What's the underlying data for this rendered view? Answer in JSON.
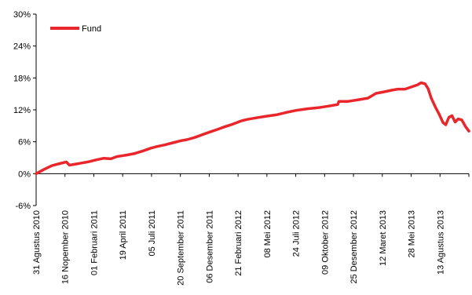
{
  "chart_data": {
    "type": "line",
    "title": "",
    "xlabel": "",
    "ylabel": "",
    "ylim": [
      -6,
      30
    ],
    "y_ticks": [
      "30%",
      "24%",
      "18%",
      "12%",
      "6%",
      "0%",
      "-6%"
    ],
    "y_tick_values": [
      30,
      24,
      18,
      12,
      6,
      0,
      -6
    ],
    "x_ticks": [
      "31 Agustus 2010",
      "16 Nopember 2010",
      "01 Februari 2011",
      "19 April 2011",
      "05 Juli 2011",
      "20 September 2011",
      "06 Desember 2011",
      "21 Februari 2012",
      "08 Mei 2012",
      "24 Juli 2012",
      "09 Oktober 2012",
      "25 Desember 2012",
      "12 Maret 2013",
      "28 Mei 2013",
      "13 Agustus 2013"
    ],
    "x_range": [
      "2010-08-31",
      "2013-09-09"
    ],
    "grid": false,
    "legend_position": "top-left",
    "colors": {
      "series": "#e8262b",
      "axis": "#000000"
    },
    "series": [
      {
        "name": "Fund",
        "x": [
          "2010-08-31",
          "2010-09-20",
          "2010-10-10",
          "2010-10-30",
          "2010-11-16",
          "2010-11-24",
          "2010-12-10",
          "2010-12-25",
          "2011-01-10",
          "2011-02-01",
          "2011-02-20",
          "2011-03-10",
          "2011-03-25",
          "2011-04-10",
          "2011-04-19",
          "2011-05-10",
          "2011-06-01",
          "2011-06-20",
          "2011-07-05",
          "2011-07-25",
          "2011-08-15",
          "2011-09-05",
          "2011-09-20",
          "2011-10-10",
          "2011-11-01",
          "2011-11-20",
          "2011-12-06",
          "2011-12-25",
          "2012-01-15",
          "2012-02-05",
          "2012-02-21",
          "2012-03-15",
          "2012-04-10",
          "2012-05-08",
          "2012-05-30",
          "2012-06-25",
          "2012-07-24",
          "2012-08-20",
          "2012-09-15",
          "2012-10-09",
          "2012-10-12",
          "2012-11-05",
          "2012-12-01",
          "2012-12-25",
          "2013-01-15",
          "2013-02-05",
          "2013-02-25",
          "2013-03-12",
          "2013-03-30",
          "2013-04-15",
          "2013-05-01",
          "2013-05-10",
          "2013-05-20",
          "2013-05-28",
          "2013-06-05",
          "2013-06-15",
          "2013-06-25",
          "2013-07-05",
          "2013-07-12",
          "2013-07-20",
          "2013-07-28",
          "2013-08-05",
          "2013-08-13",
          "2013-08-22",
          "2013-09-01",
          "2013-09-09"
        ],
        "values": [
          0.0,
          0.8,
          1.5,
          1.9,
          2.2,
          1.6,
          1.8,
          2.0,
          2.2,
          2.6,
          2.9,
          2.8,
          3.2,
          3.4,
          3.5,
          3.8,
          4.3,
          4.8,
          5.1,
          5.4,
          5.8,
          6.2,
          6.4,
          6.8,
          7.4,
          7.9,
          8.3,
          8.8,
          9.3,
          9.9,
          10.2,
          10.5,
          10.8,
          11.1,
          11.5,
          11.9,
          12.2,
          12.4,
          12.7,
          13.0,
          13.6,
          13.6,
          13.9,
          14.2,
          15.1,
          15.4,
          15.7,
          15.9,
          15.9,
          16.3,
          16.7,
          17.1,
          16.9,
          16.0,
          14.2,
          12.6,
          11.2,
          9.6,
          9.2,
          10.6,
          10.9,
          9.7,
          10.3,
          10.1,
          8.8,
          8.0
        ]
      }
    ]
  }
}
